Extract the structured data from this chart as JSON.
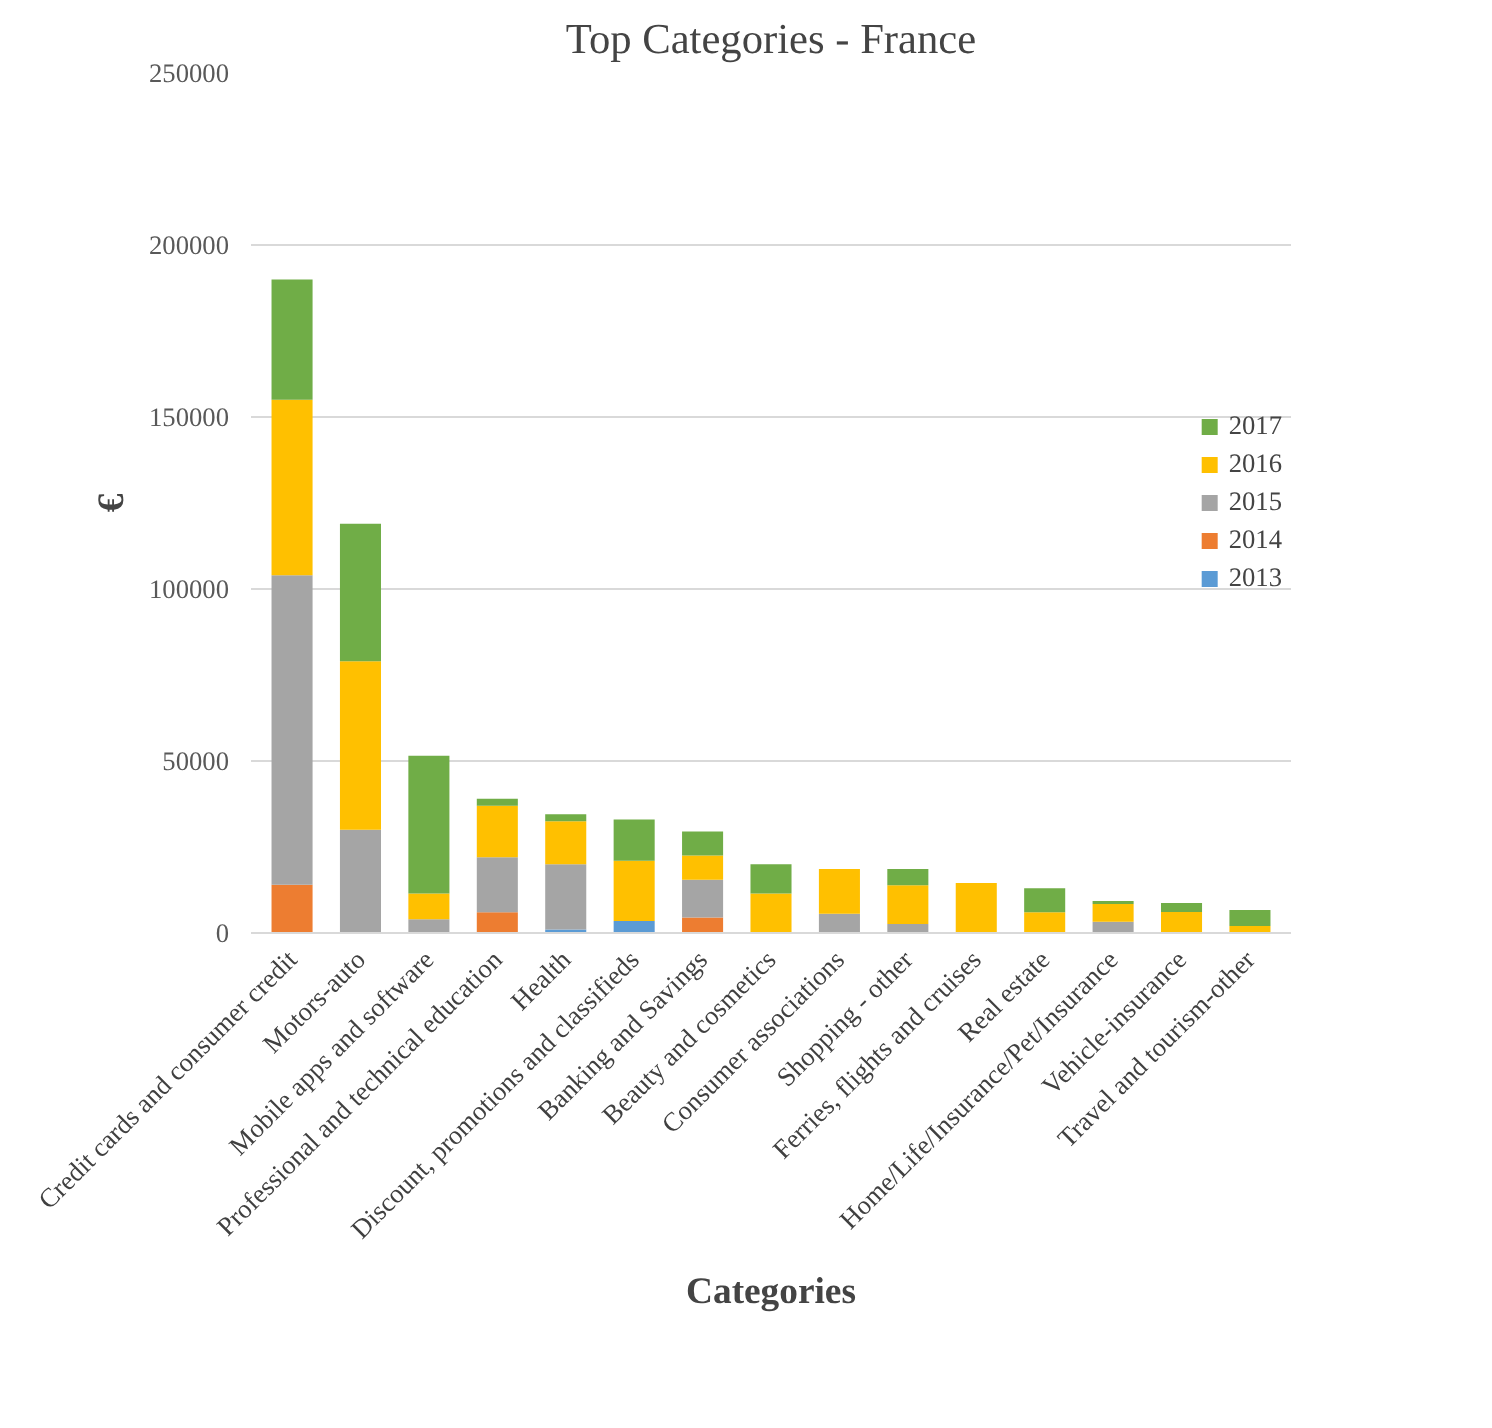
{
  "chart_data": {
    "type": "bar",
    "stacked": true,
    "title": "Top Categories - France",
    "xlabel": "Categories",
    "ylabel": "€",
    "categories": [
      "Credit cards and consumer credit",
      "Motors-auto",
      "Mobile apps and software",
      "Professional and technical education",
      "Health",
      "Discount, promotions and classifieds",
      "Banking and Savings",
      "Beauty and cosmetics",
      "Consumer associations",
      "Shopping - other",
      "Ferries, flights and cruises",
      "Real estate",
      "Home/Life/Insurance/Pet/Insurance",
      "Vehicle-insurance",
      "Travel and tourism-other"
    ],
    "series": [
      {
        "name": "2013",
        "color": "#5b9bd5",
        "values": [
          null,
          null,
          null,
          null,
          1000,
          3500,
          null,
          null,
          null,
          null,
          null,
          null,
          null,
          null,
          null
        ]
      },
      {
        "name": "2014",
        "color": "#ed7d31",
        "values": [
          14000,
          null,
          null,
          6000,
          null,
          null,
          4500,
          null,
          null,
          null,
          null,
          null,
          null,
          null,
          null
        ]
      },
      {
        "name": "2015",
        "color": "#a5a5a5",
        "values": [
          90000,
          30000,
          4000,
          16000,
          19000,
          null,
          11000,
          null,
          5600,
          2600,
          null,
          null,
          3300,
          null,
          null
        ]
      },
      {
        "name": "2016",
        "color": "#ffc000",
        "values": [
          51000,
          49000,
          7500,
          15000,
          12500,
          17500,
          7000,
          11500,
          13000,
          11300,
          14500,
          6000,
          5100,
          6100,
          2000
        ]
      },
      {
        "name": "2017",
        "color": "#70ad47",
        "values": [
          35000,
          40000,
          40000,
          2000,
          2000,
          12000,
          7000,
          8500,
          null,
          4700,
          null,
          7000,
          900,
          2600,
          4700
        ]
      }
    ],
    "ylim": [
      0,
      250000
    ],
    "yticks": [
      0,
      50000,
      100000,
      150000,
      200000,
      250000
    ],
    "grid": "y",
    "legend": "right"
  }
}
